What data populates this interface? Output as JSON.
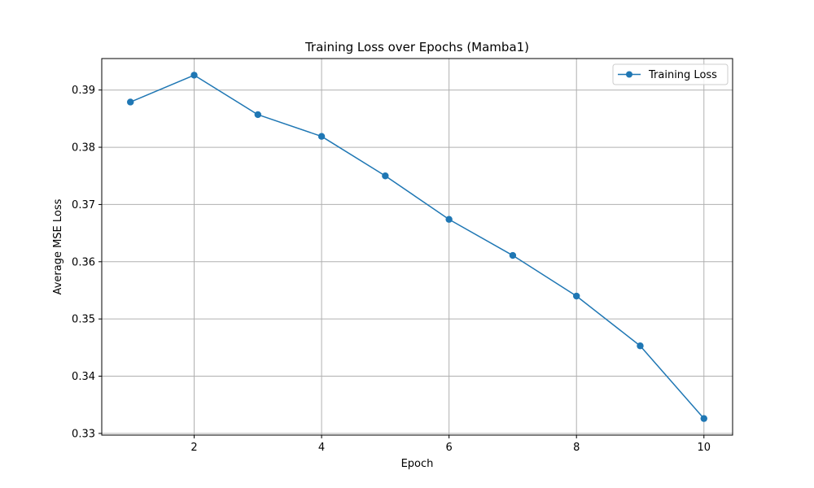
{
  "chart_data": {
    "type": "line",
    "title": "Training Loss over Epochs (Mamba1)",
    "xlabel": "Epoch",
    "ylabel": "Average MSE Loss",
    "xlim": [
      0.55,
      10.45
    ],
    "ylim": [
      0.3297,
      0.3955
    ],
    "xticks": [
      2,
      4,
      6,
      8,
      10
    ],
    "yticks": [
      0.33,
      0.34,
      0.35,
      0.36,
      0.37,
      0.38,
      0.39
    ],
    "xtick_labels": [
      "2",
      "4",
      "6",
      "8",
      "10"
    ],
    "ytick_labels": [
      "0.33",
      "0.34",
      "0.35",
      "0.36",
      "0.37",
      "0.38",
      "0.39"
    ],
    "grid": true,
    "legend": {
      "position": "top-right",
      "entries": [
        "Training Loss"
      ]
    },
    "series": [
      {
        "name": "Training Loss",
        "color": "#1f77b4",
        "marker": "circle",
        "x": [
          1,
          2,
          3,
          4,
          5,
          6,
          7,
          8,
          9,
          10
        ],
        "values": [
          0.3879,
          0.3926,
          0.3857,
          0.3819,
          0.375,
          0.3674,
          0.3611,
          0.354,
          0.3453,
          0.3326
        ]
      }
    ]
  }
}
